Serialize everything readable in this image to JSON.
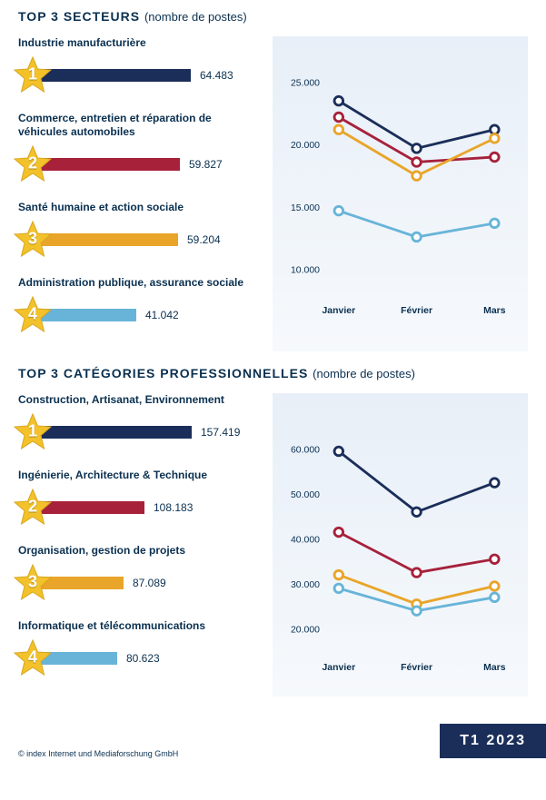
{
  "section1": {
    "title_main": "TOP 3 SECTEURS",
    "title_sub": "(nombre de postes)",
    "bar_max": 70000,
    "items": [
      {
        "label": "Industrie manufacturière",
        "value": 64483,
        "display": "64.483",
        "color": "#1b2e5a",
        "rank": "1"
      },
      {
        "label": "Commerce, entretien et réparation de véhicules automobiles",
        "value": 59827,
        "display": "59.827",
        "color": "#a7213b",
        "rank": "2"
      },
      {
        "label": "Santé humaine et action sociale",
        "value": 59204,
        "display": "59.204",
        "color": "#e9a52a",
        "rank": "3"
      },
      {
        "label": "Administration publique, assurance sociale",
        "value": 41042,
        "display": "41.042",
        "color": "#68b4d8",
        "rank": "4"
      }
    ],
    "chart": {
      "ylim": [
        8000,
        26000
      ],
      "ytick_step": 5000,
      "yticks_display": {
        "10000": "10.000",
        "15000": "15.000",
        "20000": "20.000",
        "25000": "25.000"
      },
      "x_labels": [
        "Janvier",
        "Février",
        "Mars"
      ],
      "series": [
        {
          "color": "#1b2e5a",
          "values": [
            23500,
            19700,
            21200
          ]
        },
        {
          "color": "#a7213b",
          "values": [
            22200,
            18600,
            19000
          ]
        },
        {
          "color": "#e9a52a",
          "values": [
            21200,
            17500,
            20500
          ]
        },
        {
          "color": "#68b4d8",
          "values": [
            14700,
            12600,
            13700
          ]
        }
      ]
    }
  },
  "section2": {
    "title_main": "TOP 3 CATÉGORIES PROFESSIONNELLES",
    "title_sub": "(nombre de postes)",
    "bar_max": 170000,
    "items": [
      {
        "label": "Construction, Artisanat, Environnement",
        "value": 157419,
        "display": "157.419",
        "color": "#1b2e5a",
        "rank": "1"
      },
      {
        "label": "Ingénierie, Architecture & Technique",
        "value": 108183,
        "display": "108.183",
        "color": "#a7213b",
        "rank": "2"
      },
      {
        "label": "Organisation, gestion de projets",
        "value": 87089,
        "display": "87.089",
        "color": "#e9a52a",
        "rank": "3"
      },
      {
        "label": "Informatique et télécommunications",
        "value": 80623,
        "display": "80.623",
        "color": "#68b4d8",
        "rank": "4"
      }
    ],
    "chart": {
      "ylim": [
        15000,
        65000
      ],
      "ytick_step": 10000,
      "yticks_display": {
        "20000": "20.000",
        "30000": "30.000",
        "40000": "40.000",
        "50000": "50.000",
        "60000": "60.000"
      },
      "x_labels": [
        "Janvier",
        "Février",
        "Mars"
      ],
      "series": [
        {
          "color": "#1b2e5a",
          "values": [
            59500,
            46000,
            52500
          ]
        },
        {
          "color": "#a7213b",
          "values": [
            41500,
            32500,
            35500
          ]
        },
        {
          "color": "#e9a52a",
          "values": [
            32000,
            25500,
            29500
          ]
        },
        {
          "color": "#68b4d8",
          "values": [
            29000,
            24000,
            27000
          ]
        }
      ]
    }
  },
  "star_style": {
    "fill": "#f3c22b",
    "stroke": "#d9a61e"
  },
  "marker_radius": 5,
  "line_width": 3,
  "chart_bg": "#e8eff8",
  "footer": {
    "copyright": "© index Internet und Mediaforschung GmbH",
    "period": "T1 2023"
  }
}
